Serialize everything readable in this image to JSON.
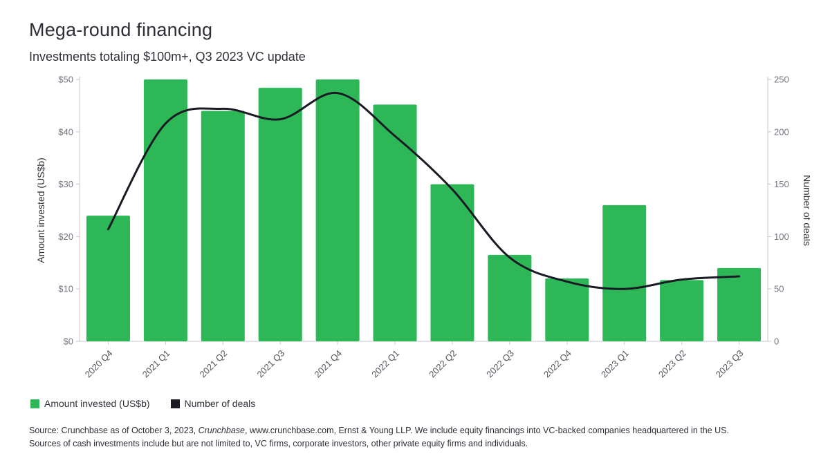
{
  "header": {
    "title": "Mega-round financing",
    "subtitle": "Investments totaling $100m+, Q3 2023 VC update"
  },
  "chart_data": {
    "type": "bar",
    "title": "Mega-round financing",
    "subtitle": "Investments totaling $100m+, Q3 2023 VC update",
    "categories": [
      "2020 Q4",
      "2021 Q1",
      "2021 Q2",
      "2021 Q3",
      "2021 Q4",
      "2022 Q1",
      "2022 Q2",
      "2022 Q3",
      "2022 Q4",
      "2023 Q1",
      "2023 Q2",
      "2023 Q3"
    ],
    "series": [
      {
        "name": "Amount invested (US$b)",
        "type": "bar",
        "axis": "left",
        "color": "#2db757",
        "values": [
          24,
          50,
          44,
          48.4,
          50,
          45.2,
          30,
          16.5,
          12,
          26,
          11.7,
          14
        ]
      },
      {
        "name": "Number of deals",
        "type": "line",
        "axis": "right",
        "color": "#1a1a24",
        "values": [
          107,
          208,
          222,
          212,
          237,
          196,
          145,
          80,
          57,
          50,
          59,
          62
        ]
      }
    ],
    "left_axis": {
      "label": "Amount invested (US$b)",
      "lim": [
        0,
        50
      ],
      "ticks": [
        0,
        10,
        20,
        30,
        40,
        50
      ],
      "tick_labels": [
        "$0",
        "$10",
        "$20",
        "$30",
        "$40",
        "$50"
      ]
    },
    "right_axis": {
      "label": "Number of deals",
      "lim": [
        0,
        250
      ],
      "ticks": [
        0,
        50,
        100,
        150,
        200,
        250
      ],
      "tick_labels": [
        "0",
        "50",
        "100",
        "150",
        "200",
        "250"
      ]
    },
    "grid": false,
    "legend_position": "bottom-left",
    "legend": [
      {
        "label": "Amount invested (US$b)",
        "color": "#2db757"
      },
      {
        "label": "Number of deals",
        "color": "#1a1a24"
      }
    ]
  },
  "source": {
    "prefix": "Source: Crunchbase as of October 3, 2023, ",
    "italic": "Crunchbase",
    "suffix": ", www.crunchbase.com, Ernst & Young LLP. We include equity financings into VC-backed companies headquartered in the US.",
    "line2": "Sources of cash investments include but are not limited to, VC firms, corporate investors, other private equity firms and individuals."
  },
  "colors": {
    "bar": "#2db757",
    "line": "#1a1a24",
    "text": "#2e2e38",
    "muted": "#747480",
    "axis": "#c6c6cf"
  }
}
